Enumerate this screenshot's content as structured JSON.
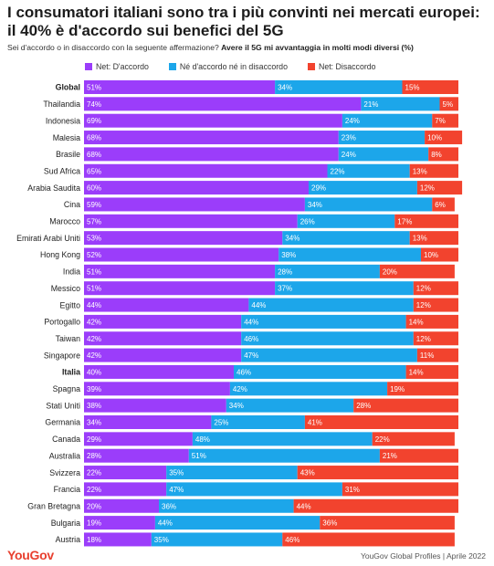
{
  "title": "I consumatori italiani sono tra i più convinti nei mercati europei: il 40% è d'accordo sui benefici del 5G",
  "subtitle_question": "Sei d'accordo o in disaccordo con la seguente affermazione?",
  "subtitle_statement": "Avere il 5G mi avvantaggia in molti modi diversi (%)",
  "footer_logo": "YouGov",
  "footer_source": "YouGov Global Profiles | Aprile 2022",
  "colors": {
    "agree": "#9b3dfa",
    "neutral": "#1ca6ea",
    "disagree": "#f2432e"
  },
  "chart_data": {
    "type": "bar",
    "orientation": "horizontal",
    "stacked": true,
    "unit": "%",
    "categories": [
      "Global",
      "Thailandia",
      "Indonesia",
      "Malesia",
      "Brasile",
      "Sud Africa",
      "Arabia Saudita",
      "Cina",
      "Marocco",
      "Emirati Arabi Uniti",
      "Hong Kong",
      "India",
      "Messico",
      "Egitto",
      "Portogallo",
      "Taiwan",
      "Singapore",
      "Italia",
      "Spagna",
      "Stati Uniti",
      "Germania",
      "Canada",
      "Australia",
      "Svizzera",
      "Francia",
      "Gran Bretagna",
      "Bulgaria",
      "Austria"
    ],
    "bold_categories": [
      "Global",
      "Italia"
    ],
    "series": [
      {
        "name": "Net: D'accordo",
        "values": [
          51,
          74,
          69,
          68,
          68,
          65,
          60,
          59,
          57,
          53,
          52,
          51,
          51,
          44,
          42,
          42,
          42,
          40,
          39,
          38,
          34,
          29,
          28,
          22,
          22,
          20,
          19,
          18
        ]
      },
      {
        "name": "Né d'accordo né in disaccordo",
        "values": [
          34,
          21,
          24,
          23,
          24,
          22,
          29,
          34,
          26,
          34,
          38,
          28,
          37,
          44,
          44,
          46,
          47,
          46,
          42,
          34,
          25,
          48,
          51,
          35,
          47,
          36,
          44,
          35
        ]
      },
      {
        "name": "Net: Disaccordo",
        "values": [
          15,
          5,
          7,
          10,
          8,
          13,
          12,
          6,
          17,
          13,
          10,
          20,
          12,
          12,
          14,
          12,
          11,
          14,
          19,
          28,
          41,
          22,
          21,
          43,
          31,
          44,
          36,
          46
        ]
      }
    ]
  }
}
